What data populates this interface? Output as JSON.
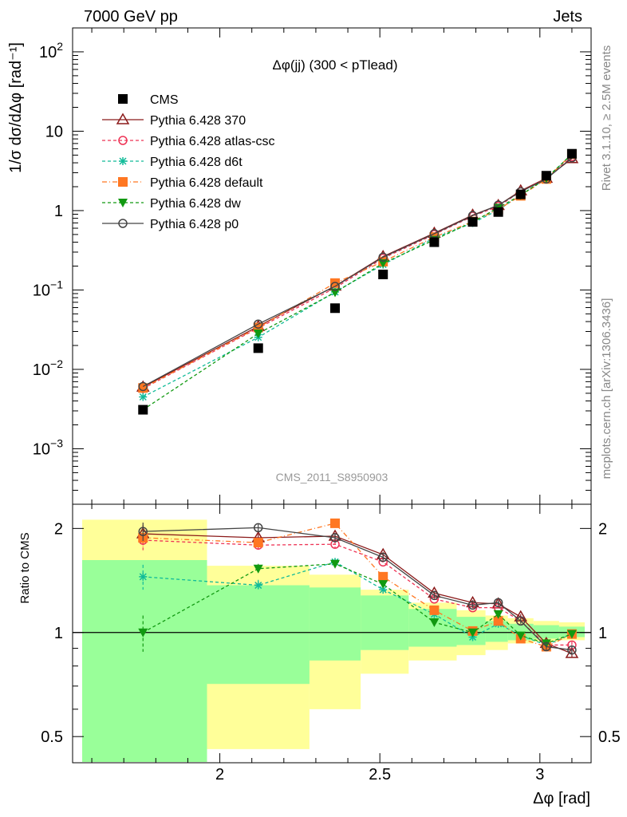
{
  "header": {
    "left": "7000 GeV pp",
    "right": "Jets"
  },
  "side_labels": {
    "rivet": "Rivet 3.1.10, ≥ 2.5M events",
    "mcplots": "mcplots.cern.ch [arXiv:1306.3436]"
  },
  "watermark": "CMS_2011_S8950903",
  "chart_data": {
    "type": "line",
    "title": "Δφ(jj) (300 < pTlead)",
    "xlabel": "Δφ [rad]",
    "ylabel_main": "1/σ dσ/dΔφ [rad⁻¹]",
    "ylabel_ratio": "Ratio to CMS",
    "x_range": [
      1.54,
      3.16
    ],
    "y_range_main": [
      0.0002,
      200
    ],
    "y_scale_main": "log",
    "y_range_ratio": [
      0.42,
      2.35
    ],
    "y_scale_ratio": "log",
    "x_ticks": [
      {
        "v": 2,
        "label": "2"
      },
      {
        "v": 2.5,
        "label": "2.5"
      },
      {
        "v": 3,
        "label": "3"
      }
    ],
    "y_ticks_main": [
      {
        "v": 0.001,
        "base": "10",
        "exp": "−3"
      },
      {
        "v": 0.01,
        "base": "10",
        "exp": "−2"
      },
      {
        "v": 0.1,
        "base": "10",
        "exp": "−1"
      },
      {
        "v": 1,
        "label": "1"
      },
      {
        "v": 10,
        "label": "10"
      },
      {
        "v": 100,
        "base": "10",
        "exp": "2"
      }
    ],
    "y_ticks_ratio": [
      {
        "v": 0.5,
        "label": "0.5"
      },
      {
        "v": 1,
        "label": "1"
      },
      {
        "v": 2,
        "label": "2"
      }
    ],
    "legend_position": "top-left",
    "x": [
      1.76,
      2.12,
      2.36,
      2.51,
      2.67,
      2.79,
      2.87,
      2.94,
      3.02,
      3.1
    ],
    "bins": [
      1.57,
      1.96,
      2.28,
      2.44,
      2.59,
      2.74,
      2.83,
      2.9,
      2.98,
      3.06,
      3.14
    ],
    "cms": {
      "name": "CMS",
      "values": [
        0.0031,
        0.0185,
        0.059,
        0.157,
        0.4,
        0.72,
        0.96,
        1.6,
        2.75,
        5.2
      ],
      "err_lo": [
        0.00028,
        0.0006,
        0.002,
        0.005,
        0.013,
        0.02,
        0.03,
        0.04,
        0.06,
        0.1
      ],
      "err_hi": [
        0.00028,
        0.0006,
        0.002,
        0.005,
        0.013,
        0.02,
        0.03,
        0.04,
        0.06,
        0.1
      ]
    },
    "bands": {
      "inner_lo": [
        0.36,
        0.71,
        0.83,
        0.89,
        0.91,
        0.92,
        0.94,
        0.95,
        0.96,
        0.97
      ],
      "inner_hi": [
        1.62,
        1.37,
        1.35,
        1.28,
        1.17,
        1.11,
        1.08,
        1.06,
        1.05,
        1.04
      ],
      "outer_lo": [
        0.34,
        0.46,
        0.6,
        0.76,
        0.83,
        0.86,
        0.89,
        0.93,
        0.94,
        0.95
      ],
      "outer_hi": [
        2.12,
        1.56,
        1.47,
        1.33,
        1.22,
        1.16,
        1.12,
        1.1,
        1.08,
        1.07
      ]
    },
    "series": [
      {
        "name": "Pythia 6.428 370",
        "color": "#8b1a1a",
        "dash": "",
        "marker": "triangle-open",
        "ratio": [
          1.93,
          1.88,
          1.9,
          1.68,
          1.3,
          1.22,
          1.21,
          1.11,
          0.93,
          0.87
        ],
        "ratio_err": [
          0.12,
          0.05,
          0.04,
          0.03,
          0.02,
          0.02,
          0.02,
          0.02,
          0.02,
          0.02
        ]
      },
      {
        "name": "Pythia 6.428 atlas-csc",
        "color": "#ee3355",
        "dash": "4,3",
        "marker": "circle-open",
        "ratio": [
          1.85,
          1.79,
          1.8,
          1.6,
          1.25,
          1.18,
          1.18,
          1.08,
          0.92,
          0.92
        ],
        "ratio_err": [
          0.12,
          0.05,
          0.04,
          0.03,
          0.02,
          0.02,
          0.02,
          0.02,
          0.02,
          0.02
        ]
      },
      {
        "name": "Pythia 6.428 d6t",
        "color": "#11bb99",
        "dash": "4,3",
        "marker": "star",
        "ratio": [
          1.45,
          1.37,
          1.6,
          1.33,
          1.13,
          0.97,
          1.06,
          0.98,
          0.92,
          0.99
        ],
        "ratio_err": [
          0.12,
          0.05,
          0.04,
          0.03,
          0.02,
          0.02,
          0.02,
          0.02,
          0.02,
          0.02
        ]
      },
      {
        "name": "Pythia 6.428 default",
        "color": "#ff7722",
        "dash": "6,3,1,3",
        "marker": "square",
        "ratio": [
          1.88,
          1.82,
          2.07,
          1.45,
          1.16,
          1.01,
          1.08,
          0.96,
          0.91,
          0.99
        ],
        "ratio_err": [
          0.12,
          0.05,
          0.05,
          0.03,
          0.02,
          0.02,
          0.02,
          0.02,
          0.02,
          0.02
        ]
      },
      {
        "name": "Pythia 6.428 dw",
        "color": "#119911",
        "dash": "4,3",
        "marker": "triangle-down",
        "ratio": [
          1.0,
          1.53,
          1.58,
          1.38,
          1.07,
          1.0,
          1.13,
          0.98,
          0.93,
          0.99
        ],
        "ratio_err": [
          0.12,
          0.05,
          0.04,
          0.03,
          0.02,
          0.02,
          0.02,
          0.02,
          0.02,
          0.02
        ]
      },
      {
        "name": "Pythia 6.428 p0",
        "color": "#444444",
        "dash": "",
        "marker": "circle-open",
        "ratio": [
          1.96,
          2.01,
          1.88,
          1.65,
          1.28,
          1.2,
          1.22,
          1.08,
          0.91,
          0.89
        ],
        "ratio_err": [
          0.12,
          0.05,
          0.04,
          0.03,
          0.02,
          0.02,
          0.02,
          0.02,
          0.02,
          0.02
        ]
      }
    ]
  }
}
